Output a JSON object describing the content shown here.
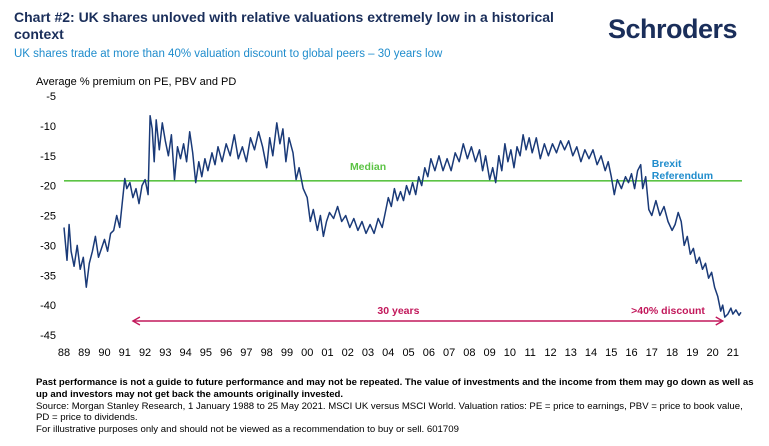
{
  "header": {
    "title": "Chart #2: UK shares unloved with relative valuations extremely low in a historical context",
    "subtitle": "UK shares trade at more than 40% valuation discount to global peers – 30 years low",
    "logo": "Schroders"
  },
  "colors": {
    "series": "#1a3a78",
    "median": "#5cc345",
    "arrow": "#c2185b",
    "brexit": "#1f8ccc",
    "title": "#1a2e5a",
    "subtitle": "#1f8ccc"
  },
  "chart_data": {
    "type": "line",
    "title": "",
    "ylabel": "Average % premium on PE, PBV and PD",
    "ylim": [
      -45,
      -5
    ],
    "yticks": [
      -5,
      -10,
      -15,
      -20,
      -25,
      -30,
      -35,
      -40,
      -45
    ],
    "xlim": [
      1988.0,
      2021.45
    ],
    "xticks": [
      "88",
      "89",
      "90",
      "91",
      "92",
      "93",
      "94",
      "95",
      "96",
      "97",
      "98",
      "99",
      "00",
      "01",
      "02",
      "03",
      "04",
      "05",
      "06",
      "07",
      "08",
      "09",
      "10",
      "11",
      "12",
      "13",
      "14",
      "15",
      "16",
      "17",
      "18",
      "19",
      "20",
      "21"
    ],
    "grid": false,
    "median": -19.2,
    "annotations": {
      "median": "Median",
      "brexit": [
        "Brexit",
        "Referendum"
      ],
      "range": "30 years",
      "discount": ">40% discount"
    },
    "series": [
      {
        "values": [
          [
            1988.0,
            -27.0
          ],
          [
            1988.15,
            -32.5
          ],
          [
            1988.25,
            -26.5
          ],
          [
            1988.35,
            -31.0
          ],
          [
            1988.5,
            -33.5
          ],
          [
            1988.65,
            -30.0
          ],
          [
            1988.8,
            -34.0
          ],
          [
            1988.95,
            -32.0
          ],
          [
            1989.1,
            -37.0
          ],
          [
            1989.25,
            -33.0
          ],
          [
            1989.4,
            -31.0
          ],
          [
            1989.55,
            -28.5
          ],
          [
            1989.7,
            -32.0
          ],
          [
            1989.85,
            -30.5
          ],
          [
            1990.0,
            -29.0
          ],
          [
            1990.15,
            -31.0
          ],
          [
            1990.3,
            -28.0
          ],
          [
            1990.45,
            -27.5
          ],
          [
            1990.6,
            -25.0
          ],
          [
            1990.75,
            -27.0
          ],
          [
            1990.9,
            -22.0
          ],
          [
            1991.0,
            -18.8
          ],
          [
            1991.1,
            -20.5
          ],
          [
            1991.25,
            -19.5
          ],
          [
            1991.4,
            -22.0
          ],
          [
            1991.55,
            -20.5
          ],
          [
            1991.7,
            -23.0
          ],
          [
            1991.85,
            -20.0
          ],
          [
            1992.0,
            -19.0
          ],
          [
            1992.15,
            -21.5
          ],
          [
            1992.25,
            -8.3
          ],
          [
            1992.35,
            -10.5
          ],
          [
            1992.45,
            -16.0
          ],
          [
            1992.55,
            -9.0
          ],
          [
            1992.7,
            -14.0
          ],
          [
            1992.85,
            -9.5
          ],
          [
            1993.0,
            -12.5
          ],
          [
            1993.15,
            -15.0
          ],
          [
            1993.3,
            -11.5
          ],
          [
            1993.45,
            -19.0
          ],
          [
            1993.6,
            -13.5
          ],
          [
            1993.75,
            -15.5
          ],
          [
            1993.9,
            -13.0
          ],
          [
            1994.05,
            -16.0
          ],
          [
            1994.2,
            -11.0
          ],
          [
            1994.35,
            -14.5
          ],
          [
            1994.5,
            -19.5
          ],
          [
            1994.65,
            -16.0
          ],
          [
            1994.8,
            -18.5
          ],
          [
            1994.95,
            -15.5
          ],
          [
            1995.1,
            -17.5
          ],
          [
            1995.3,
            -14.5
          ],
          [
            1995.45,
            -16.5
          ],
          [
            1995.6,
            -13.5
          ],
          [
            1995.8,
            -16.0
          ],
          [
            1996.0,
            -13.0
          ],
          [
            1996.2,
            -15.0
          ],
          [
            1996.4,
            -11.5
          ],
          [
            1996.6,
            -15.5
          ],
          [
            1996.8,
            -13.5
          ],
          [
            1997.0,
            -16.0
          ],
          [
            1997.2,
            -12.0
          ],
          [
            1997.4,
            -14.0
          ],
          [
            1997.6,
            -11.0
          ],
          [
            1997.8,
            -13.5
          ],
          [
            1998.0,
            -17.0
          ],
          [
            1998.15,
            -12.0
          ],
          [
            1998.3,
            -15.0
          ],
          [
            1998.5,
            -9.5
          ],
          [
            1998.65,
            -13.0
          ],
          [
            1998.8,
            -10.5
          ],
          [
            1998.95,
            -16.0
          ],
          [
            1999.1,
            -12.0
          ],
          [
            1999.3,
            -14.5
          ],
          [
            1999.45,
            -19.0
          ],
          [
            1999.6,
            -17.0
          ],
          [
            1999.8,
            -20.5
          ],
          [
            2000.0,
            -22.0
          ],
          [
            2000.15,
            -26.0
          ],
          [
            2000.3,
            -24.0
          ],
          [
            2000.5,
            -27.5
          ],
          [
            2000.65,
            -25.0
          ],
          [
            2000.8,
            -28.5
          ],
          [
            2000.95,
            -26.0
          ],
          [
            2001.1,
            -24.5
          ],
          [
            2001.3,
            -25.5
          ],
          [
            2001.5,
            -23.5
          ],
          [
            2001.7,
            -26.0
          ],
          [
            2001.9,
            -25.0
          ],
          [
            2002.1,
            -27.0
          ],
          [
            2002.3,
            -25.5
          ],
          [
            2002.5,
            -27.5
          ],
          [
            2002.7,
            -26.0
          ],
          [
            2002.9,
            -28.0
          ],
          [
            2003.1,
            -26.5
          ],
          [
            2003.3,
            -28.0
          ],
          [
            2003.5,
            -25.5
          ],
          [
            2003.7,
            -27.0
          ],
          [
            2003.85,
            -24.5
          ],
          [
            2004.0,
            -22.0
          ],
          [
            2004.15,
            -23.5
          ],
          [
            2004.3,
            -20.5
          ],
          [
            2004.45,
            -22.5
          ],
          [
            2004.6,
            -21.0
          ],
          [
            2004.75,
            -22.5
          ],
          [
            2004.9,
            -20.0
          ],
          [
            2005.05,
            -21.5
          ],
          [
            2005.2,
            -19.5
          ],
          [
            2005.35,
            -21.5
          ],
          [
            2005.5,
            -18.5
          ],
          [
            2005.65,
            -20.0
          ],
          [
            2005.8,
            -17.0
          ],
          [
            2005.95,
            -18.5
          ],
          [
            2006.1,
            -15.5
          ],
          [
            2006.3,
            -17.5
          ],
          [
            2006.5,
            -15.0
          ],
          [
            2006.7,
            -17.5
          ],
          [
            2006.9,
            -15.5
          ],
          [
            2007.1,
            -17.5
          ],
          [
            2007.3,
            -14.5
          ],
          [
            2007.5,
            -16.0
          ],
          [
            2007.7,
            -13.0
          ],
          [
            2007.9,
            -15.5
          ],
          [
            2008.1,
            -13.5
          ],
          [
            2008.3,
            -16.0
          ],
          [
            2008.5,
            -14.0
          ],
          [
            2008.65,
            -17.5
          ],
          [
            2008.8,
            -15.0
          ],
          [
            2009.0,
            -19.0
          ],
          [
            2009.15,
            -17.0
          ],
          [
            2009.3,
            -19.5
          ],
          [
            2009.45,
            -15.0
          ],
          [
            2009.6,
            -17.5
          ],
          [
            2009.75,
            -13.0
          ],
          [
            2009.9,
            -16.0
          ],
          [
            2010.05,
            -14.0
          ],
          [
            2010.2,
            -17.0
          ],
          [
            2010.35,
            -13.5
          ],
          [
            2010.5,
            -15.0
          ],
          [
            2010.65,
            -11.5
          ],
          [
            2010.8,
            -14.0
          ],
          [
            2010.95,
            -12.0
          ],
          [
            2011.1,
            -14.5
          ],
          [
            2011.3,
            -12.0
          ],
          [
            2011.5,
            -15.5
          ],
          [
            2011.7,
            -13.0
          ],
          [
            2011.9,
            -15.0
          ],
          [
            2012.1,
            -13.0
          ],
          [
            2012.3,
            -14.5
          ],
          [
            2012.5,
            -12.5
          ],
          [
            2012.7,
            -14.0
          ],
          [
            2012.9,
            -12.5
          ],
          [
            2013.1,
            -15.0
          ],
          [
            2013.3,
            -13.5
          ],
          [
            2013.5,
            -16.0
          ],
          [
            2013.7,
            -14.0
          ],
          [
            2013.9,
            -15.5
          ],
          [
            2014.1,
            -14.0
          ],
          [
            2014.3,
            -16.5
          ],
          [
            2014.5,
            -15.0
          ],
          [
            2014.7,
            -17.5
          ],
          [
            2014.85,
            -16.0
          ],
          [
            2015.0,
            -18.5
          ],
          [
            2015.15,
            -21.5
          ],
          [
            2015.3,
            -19.0
          ],
          [
            2015.5,
            -20.5
          ],
          [
            2015.7,
            -18.5
          ],
          [
            2015.85,
            -19.5
          ],
          [
            2016.0,
            -18.0
          ],
          [
            2016.15,
            -20.5
          ],
          [
            2016.3,
            -17.5
          ],
          [
            2016.45,
            -16.5
          ],
          [
            2016.55,
            -20.5
          ],
          [
            2016.7,
            -18.5
          ],
          [
            2016.85,
            -24.0
          ],
          [
            2017.0,
            -25.0
          ],
          [
            2017.2,
            -22.5
          ],
          [
            2017.4,
            -25.0
          ],
          [
            2017.6,
            -23.5
          ],
          [
            2017.8,
            -26.0
          ],
          [
            2018.0,
            -27.5
          ],
          [
            2018.15,
            -26.5
          ],
          [
            2018.3,
            -24.5
          ],
          [
            2018.45,
            -26.0
          ],
          [
            2018.6,
            -30.0
          ],
          [
            2018.75,
            -28.5
          ],
          [
            2018.9,
            -31.5
          ],
          [
            2019.05,
            -30.5
          ],
          [
            2019.2,
            -33.0
          ],
          [
            2019.35,
            -32.0
          ],
          [
            2019.5,
            -34.0
          ],
          [
            2019.65,
            -33.0
          ],
          [
            2019.8,
            -35.5
          ],
          [
            2019.95,
            -34.5
          ],
          [
            2020.1,
            -37.0
          ],
          [
            2020.25,
            -38.5
          ],
          [
            2020.4,
            -41.0
          ],
          [
            2020.5,
            -40.0
          ],
          [
            2020.6,
            -42.0
          ],
          [
            2020.75,
            -41.5
          ],
          [
            2020.9,
            -40.5
          ],
          [
            2021.0,
            -41.5
          ],
          [
            2021.15,
            -40.8
          ],
          [
            2021.3,
            -41.7
          ],
          [
            2021.4,
            -41.2
          ]
        ]
      }
    ]
  },
  "footer": {
    "disclaimer": "Past performance is not a guide to future performance and may not be repeated. The value of investments and the income from them may go down as well as up and investors may not get back the amounts originally invested.",
    "source": "Source: Morgan Stanley Research, 1 January 1988 to 25 May 2021. MSCI UK versus MSCI World. Valuation ratios: PE = price to earnings, PBV = price to book value, PD = price to dividends.",
    "note": "For illustrative purposes only and should not be viewed as a recommendation to buy or sell. 601709"
  }
}
